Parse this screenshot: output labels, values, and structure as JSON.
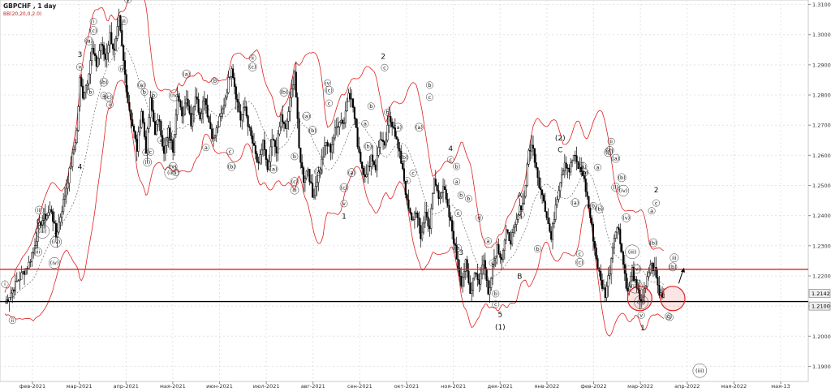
{
  "header": {
    "symbol_line": "GBPCHF , 1 day",
    "indicator_line": "BB(20,20,0,2.0)"
  },
  "colors": {
    "background": "#ffffff",
    "grid": "#e4e4e4",
    "candle": "#000000",
    "bollinger": "#e02020",
    "mid_band": "#555555",
    "resistance_line": "#e02020",
    "support_line": "#000000",
    "highlight_circle": "#e02020",
    "price_tag_bg": "#eeeeee"
  },
  "chart_data": {
    "type": "candlestick",
    "title": "GBPCHF , 1 day",
    "indicator": "BB(20,20,0,2.0)",
    "grid": true,
    "legend": "none",
    "ylim": [
      1.185,
      1.3115
    ],
    "y_ticks": [
      "1.3100",
      "1.3000",
      "1.2900",
      "1.2800",
      "1.2700",
      "1.2600",
      "1.2500",
      "1.2400",
      "1.2300",
      "1.2200",
      "1.2100",
      "1.2000",
      "1.1900"
    ],
    "x_ticks": [
      "фев-2021",
      "мар-2021",
      "апр-2021",
      "мая-2021",
      "июн-2021",
      "июл-2021",
      "авг-2021",
      "сен-2021",
      "окт-2021",
      "ноя-2021",
      "дек-2021",
      "янв-2022",
      "фев-2022",
      "мар-2022",
      "апр-2022",
      "мая-2022",
      "мая-13"
    ],
    "horizontal_levels": [
      {
        "value": 1.2222,
        "role": "resistance"
      },
      {
        "value": 1.2115,
        "role": "support"
      }
    ],
    "price_tags": [
      {
        "value": 1.2142,
        "label": "1.2142"
      },
      {
        "value": 1.21,
        "label": "1.2100"
      }
    ],
    "price_path": [
      [
        0,
        1.211
      ],
      [
        8,
        1.218
      ],
      [
        16,
        1.224
      ],
      [
        24,
        1.238
      ],
      [
        31,
        1.242
      ],
      [
        34,
        1.233
      ],
      [
        40,
        1.247
      ],
      [
        46,
        1.262
      ],
      [
        48,
        1.268
      ],
      [
        50,
        1.285
      ],
      [
        52,
        1.28
      ],
      [
        55,
        1.285
      ],
      [
        58,
        1.295
      ],
      [
        61,
        1.29
      ],
      [
        64,
        1.297
      ],
      [
        67,
        1.292
      ],
      [
        70,
        1.3
      ],
      [
        73,
        1.294
      ],
      [
        76,
        1.305
      ],
      [
        79,
        1.291
      ],
      [
        82,
        1.278
      ],
      [
        85,
        1.27
      ],
      [
        88,
        1.262
      ],
      [
        91,
        1.275
      ],
      [
        94,
        1.262
      ],
      [
        97,
        1.278
      ],
      [
        100,
        1.268
      ],
      [
        103,
        1.272
      ],
      [
        106,
        1.26
      ],
      [
        109,
        1.268
      ],
      [
        112,
        1.262
      ],
      [
        115,
        1.281
      ],
      [
        118,
        1.272
      ],
      [
        121,
        1.28
      ],
      [
        124,
        1.271
      ],
      [
        127,
        1.28
      ],
      [
        130,
        1.273
      ],
      [
        133,
        1.28
      ],
      [
        136,
        1.271
      ],
      [
        139,
        1.265
      ],
      [
        142,
        1.27
      ],
      [
        145,
        1.275
      ],
      [
        148,
        1.282
      ],
      [
        151,
        1.29
      ],
      [
        154,
        1.28
      ],
      [
        157,
        1.272
      ],
      [
        160,
        1.276
      ],
      [
        163,
        1.268
      ],
      [
        166,
        1.262
      ],
      [
        169,
        1.256
      ],
      [
        172,
        1.265
      ],
      [
        175,
        1.254
      ],
      [
        178,
        1.265
      ],
      [
        181,
        1.262
      ],
      [
        184,
        1.273
      ],
      [
        187,
        1.268
      ],
      [
        190,
        1.278
      ],
      [
        193,
        1.288
      ],
      [
        196,
        1.262
      ],
      [
        199,
        1.252
      ],
      [
        202,
        1.256
      ],
      [
        205,
        1.246
      ],
      [
        208,
        1.252
      ],
      [
        211,
        1.258
      ],
      [
        214,
        1.264
      ],
      [
        217,
        1.262
      ],
      [
        220,
        1.268
      ],
      [
        223,
        1.272
      ],
      [
        226,
        1.271
      ],
      [
        229,
        1.282
      ],
      [
        232,
        1.276
      ],
      [
        235,
        1.264
      ],
      [
        238,
        1.256
      ],
      [
        241,
        1.253
      ],
      [
        244,
        1.26
      ],
      [
        247,
        1.256
      ],
      [
        250,
        1.266
      ],
      [
        253,
        1.262
      ],
      [
        256,
        1.272
      ],
      [
        259,
        1.27
      ],
      [
        262,
        1.262
      ],
      [
        265,
        1.256
      ],
      [
        268,
        1.244
      ],
      [
        271,
        1.238
      ],
      [
        274,
        1.242
      ],
      [
        277,
        1.232
      ],
      [
        280,
        1.241
      ],
      [
        283,
        1.236
      ],
      [
        286,
        1.252
      ],
      [
        289,
        1.246
      ],
      [
        292,
        1.25
      ],
      [
        295,
        1.242
      ],
      [
        298,
        1.235
      ],
      [
        301,
        1.226
      ],
      [
        304,
        1.218
      ],
      [
        307,
        1.224
      ],
      [
        310,
        1.214
      ],
      [
        313,
        1.222
      ],
      [
        316,
        1.218
      ],
      [
        319,
        1.226
      ],
      [
        322,
        1.214
      ],
      [
        325,
        1.224
      ],
      [
        328,
        1.23
      ],
      [
        331,
        1.226
      ],
      [
        334,
        1.234
      ],
      [
        337,
        1.232
      ],
      [
        340,
        1.236
      ],
      [
        343,
        1.242
      ],
      [
        346,
        1.246
      ],
      [
        349,
        1.262
      ],
      [
        352,
        1.262
      ],
      [
        355,
        1.252
      ],
      [
        358,
        1.248
      ],
      [
        361,
        1.24
      ],
      [
        364,
        1.232
      ],
      [
        367,
        1.244
      ],
      [
        370,
        1.252
      ],
      [
        373,
        1.258
      ],
      [
        376,
        1.255
      ],
      [
        379,
        1.26
      ],
      [
        382,
        1.256
      ],
      [
        385,
        1.254
      ],
      [
        388,
        1.246
      ],
      [
        391,
        1.236
      ],
      [
        394,
        1.226
      ],
      [
        397,
        1.218
      ],
      [
        400,
        1.214
      ],
      [
        403,
        1.222
      ],
      [
        406,
        1.234
      ],
      [
        409,
        1.236
      ],
      [
        412,
        1.224
      ],
      [
        415,
        1.214
      ],
      [
        418,
        1.222
      ],
      [
        421,
        1.215
      ],
      [
        424,
        1.212
      ],
      [
        427,
        1.216
      ],
      [
        430,
        1.224
      ],
      [
        433,
        1.222
      ],
      [
        436,
        1.214
      ],
      [
        439,
        1.2142
      ]
    ],
    "annotations": [
      {
        "t": 0,
        "v": 1.2175,
        "text": "i"
      },
      {
        "t": 5,
        "v": 1.2055,
        "text": "ii"
      },
      {
        "t": 22,
        "v": 1.2282,
        "text": "iii"
      },
      {
        "t": 25,
        "v": 1.235,
        "text": "(iii)"
      },
      {
        "t": 24,
        "v": 1.2382,
        "text": "(v)"
      },
      {
        "t": 23,
        "v": 1.242,
        "text": "iii"
      },
      {
        "t": 33,
        "v": 1.2245,
        "text": "(iv)"
      },
      {
        "t": 34,
        "v": 1.2315,
        "text": "(iv)"
      },
      {
        "t": 50,
        "v": 1.2562,
        "text": "4"
      },
      {
        "t": 50,
        "v": 1.2895,
        "text": "v"
      },
      {
        "t": 50,
        "v": 1.2935,
        "text": "3"
      },
      {
        "t": 56,
        "v": 1.2982,
        "text": "(a)"
      },
      {
        "t": 59,
        "v": 1.3016,
        "text": "(c)"
      },
      {
        "t": 59,
        "v": 1.3046,
        "text": "i"
      },
      {
        "t": 57,
        "v": 1.2812,
        "text": "b"
      },
      {
        "t": 66,
        "v": 1.2845,
        "text": "(b)"
      },
      {
        "t": 66,
        "v": 1.28,
        "text": "a"
      },
      {
        "t": 69,
        "v": 1.2795,
        "text": "(c)"
      },
      {
        "t": 70,
        "v": 1.277,
        "text": "ii"
      },
      {
        "t": 79,
        "v": 1.3048,
        "text": "iii"
      },
      {
        "t": 78,
        "v": 1.2889,
        "text": "iv"
      },
      {
        "t": 82,
        "v": 1.3118,
        "text": "v"
      },
      {
        "t": 93,
        "v": 1.2812,
        "text": "b"
      },
      {
        "t": 99,
        "v": 1.2802,
        "text": "b"
      },
      {
        "t": 91,
        "v": 1.2835,
        "text": "(a)"
      },
      {
        "t": 94,
        "v": 1.2612,
        "text": "c"
      },
      {
        "t": 97,
        "v": 1.2613,
        "text": "c"
      },
      {
        "t": 95,
        "v": 1.2579,
        "text": "(i)"
      },
      {
        "t": 104,
        "v": 1.2652,
        "text": "a"
      },
      {
        "t": 110,
        "v": 1.2655,
        "text": "a"
      },
      {
        "t": 113,
        "v": 1.2801,
        "text": "(iv)"
      },
      {
        "t": 112,
        "v": 1.2565,
        "text": "(v)"
      },
      {
        "t": 111,
        "v": 1.2545,
        "text": "(iii)"
      },
      {
        "t": 114,
        "v": 1.2545,
        "text": "i"
      },
      {
        "t": 121,
        "v": 1.2872,
        "text": "(a)"
      },
      {
        "t": 140,
        "v": 1.2848,
        "text": "b"
      },
      {
        "t": 134,
        "v": 1.2628,
        "text": "a"
      },
      {
        "t": 150,
        "v": 1.2615,
        "text": "c"
      },
      {
        "t": 151,
        "v": 1.2565,
        "text": "(b)"
      },
      {
        "t": 165,
        "v": 1.2925,
        "text": "ii"
      },
      {
        "t": 165,
        "v": 1.2895,
        "text": "(c)"
      },
      {
        "t": 186,
        "v": 1.2812,
        "text": "(b)"
      },
      {
        "t": 179,
        "v": 1.2557,
        "text": "(a)"
      },
      {
        "t": 201,
        "v": 1.2732,
        "text": "(a)"
      },
      {
        "t": 193,
        "v": 1.2598,
        "text": "b"
      },
      {
        "t": 193,
        "v": 1.2515,
        "text": "(c)"
      },
      {
        "t": 193,
        "v": 1.2487,
        "text": "iii"
      },
      {
        "t": 205,
        "v": 1.2685,
        "text": "(b)"
      },
      {
        "t": 209,
        "v": 1.2548,
        "text": "(a)"
      },
      {
        "t": 215,
        "v": 1.2842,
        "text": "iv"
      },
      {
        "t": 216,
        "v": 1.2818,
        "text": "(c)"
      },
      {
        "t": 216,
        "v": 1.2775,
        "text": "c"
      },
      {
        "t": 226,
        "v": 1.2495,
        "text": "(c)"
      },
      {
        "t": 226,
        "v": 1.2442,
        "text": "v"
      },
      {
        "t": 226,
        "v": 1.2398,
        "text": "1"
      },
      {
        "t": 231,
        "v": 1.2545,
        "text": "(a)"
      },
      {
        "t": 240,
        "v": 1.2707,
        "text": "a"
      },
      {
        "t": 252,
        "v": 1.2928,
        "text": "2"
      },
      {
        "t": 253,
        "v": 1.2893,
        "text": "c"
      },
      {
        "t": 244,
        "v": 1.2765,
        "text": "b"
      },
      {
        "t": 242,
        "v": 1.2632,
        "text": "(b)"
      },
      {
        "t": 255,
        "v": 1.2745,
        "text": "b"
      },
      {
        "t": 262,
        "v": 1.2695,
        "text": "(a)"
      },
      {
        "t": 266,
        "v": 1.2595,
        "text": "(b)"
      },
      {
        "t": 276,
        "v": 1.2695,
        "text": "(a)"
      },
      {
        "t": 283,
        "v": 1.2835,
        "text": "b"
      },
      {
        "t": 283,
        "v": 1.2795,
        "text": "c"
      },
      {
        "t": 272,
        "v": 1.2543,
        "text": "c"
      },
      {
        "t": 268,
        "v": 1.2518,
        "text": "a"
      },
      {
        "t": 297,
        "v": 1.2622,
        "text": "4"
      },
      {
        "t": 297,
        "v": 1.2588,
        "text": "c"
      },
      {
        "t": 301,
        "v": 1.2565,
        "text": "b"
      },
      {
        "t": 301,
        "v": 1.2515,
        "text": "a"
      },
      {
        "t": 304,
        "v": 1.247,
        "text": "b"
      },
      {
        "t": 302,
        "v": 1.241,
        "text": "c"
      },
      {
        "t": 309,
        "v": 1.2458,
        "text": "b"
      },
      {
        "t": 316,
        "v": 1.2395,
        "text": "d"
      },
      {
        "t": 304,
        "v": 1.2278,
        "text": "3"
      },
      {
        "t": 302,
        "v": 1.2295,
        "text": "a"
      },
      {
        "t": 322,
        "v": 1.2318,
        "text": "a"
      },
      {
        "t": 325,
        "v": 1.2245,
        "text": "c"
      },
      {
        "t": 327,
        "v": 1.2143,
        "text": "b"
      },
      {
        "t": 327,
        "v": 1.2108,
        "text": "c"
      },
      {
        "t": 330,
        "v": 1.2072,
        "text": "5"
      },
      {
        "t": 330,
        "v": 1.2031,
        "text": "(1)"
      },
      {
        "t": 343,
        "v": 1.2468,
        "text": "A"
      },
      {
        "t": 344,
        "v": 1.2405,
        "text": "c"
      },
      {
        "t": 343,
        "v": 1.2198,
        "text": "B"
      },
      {
        "t": 355,
        "v": 1.2292,
        "text": "b"
      },
      {
        "t": 370,
        "v": 1.2658,
        "text": "(2)"
      },
      {
        "t": 370,
        "v": 1.2618,
        "text": "C"
      },
      {
        "t": 380,
        "v": 1.2445,
        "text": "(a)"
      },
      {
        "t": 386,
        "v": 1.2546,
        "text": "(b)"
      },
      {
        "t": 383,
        "v": 1.2247,
        "text": "(c)"
      },
      {
        "t": 383,
        "v": 1.2275,
        "text": "c"
      },
      {
        "t": 392,
        "v": 1.2435,
        "text": "b"
      },
      {
        "t": 396,
        "v": 1.2425,
        "text": "(b)"
      },
      {
        "t": 385,
        "v": 1.2565,
        "text": "(a)"
      },
      {
        "t": 395,
        "v": 1.2562,
        "text": "a"
      },
      {
        "t": 402,
        "v": 1.2612,
        "text": "(i)"
      },
      {
        "t": 404,
        "v": 1.2648,
        "text": "ii"
      },
      {
        "t": 403,
        "v": 1.2618,
        "text": "(c)"
      },
      {
        "t": 407,
        "v": 1.2592,
        "text": "(a)"
      },
      {
        "t": 411,
        "v": 1.2528,
        "text": "(b)"
      },
      {
        "t": 407,
        "v": 1.2496,
        "text": "(i)"
      },
      {
        "t": 412,
        "v": 1.2485,
        "text": "(iv)"
      },
      {
        "t": 414,
        "v": 1.2395,
        "text": "(v)"
      },
      {
        "t": 418,
        "v": 1.2282,
        "text": "(iii)"
      },
      {
        "t": 421,
        "v": 1.2225,
        "text": "(v)"
      },
      {
        "t": 420,
        "v": 1.2168,
        "text": "(iii)"
      },
      {
        "t": 424,
        "v": 1.2115,
        "text": "(iii)"
      },
      {
        "t": 424,
        "v": 1.2072,
        "text": "v"
      },
      {
        "t": 425,
        "v": 1.2028,
        "text": "1"
      },
      {
        "t": 434,
        "v": 1.2485,
        "text": "2"
      },
      {
        "t": 434,
        "v": 1.2444,
        "text": "c"
      },
      {
        "t": 431,
        "v": 1.2418,
        "text": "a"
      },
      {
        "t": 432,
        "v": 1.2312,
        "text": "(b)"
      },
      {
        "t": 445,
        "v": 1.2232,
        "text": "(b)"
      },
      {
        "t": 446,
        "v": 1.2262,
        "text": "iii"
      },
      {
        "t": 442,
        "v": 1.2068,
        "text": "c"
      },
      {
        "t": 443,
        "v": 1.2065,
        "text": "ii"
      },
      {
        "t": 463,
        "v": 1.1888,
        "text": "(iii)"
      }
    ],
    "highlight_circles": [
      {
        "t": 423,
        "v": 1.2125
      },
      {
        "t": 445,
        "v": 1.2125
      }
    ],
    "projection_arrow": {
      "from": [
        449,
        1.2175
      ],
      "to": [
        452,
        1.2222
      ]
    }
  }
}
